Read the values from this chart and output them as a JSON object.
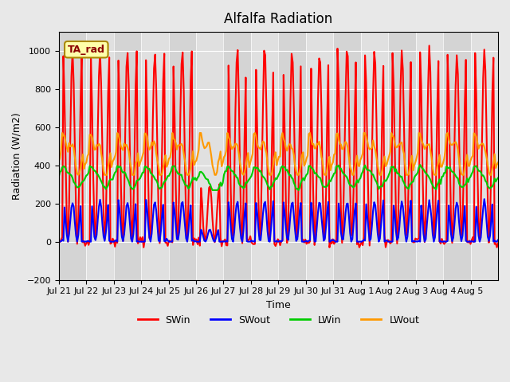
{
  "title": "Alfalfa Radiation",
  "xlabel": "Time",
  "ylabel": "Radiation (W/m2)",
  "ylim": [
    -200,
    1100
  ],
  "yticks": [
    -200,
    0,
    200,
    400,
    600,
    800,
    1000
  ],
  "bg_color": "#e8e8e8",
  "plot_bg_color": "#e0e0e0",
  "n_days": 16,
  "xtick_labels": [
    "Jul 21",
    "Jul 22",
    "Jul 23",
    "Jul 24",
    "Jul 25",
    "Jul 26",
    "Jul 27",
    "Jul 28",
    "Jul 29",
    "Jul 30",
    "Jul 31",
    "Aug 1",
    "Aug 2",
    "Aug 3",
    "Aug 4",
    "Aug 5"
  ],
  "xtick_positions": [
    0,
    1,
    2,
    3,
    4,
    5,
    6,
    7,
    8,
    9,
    10,
    11,
    12,
    13,
    14,
    15
  ],
  "colors": {
    "SWin": "#ff0000",
    "SWout": "#0000ff",
    "LWin": "#00cc00",
    "LWout": "#ff9900"
  },
  "legend_label": "TA_rad",
  "linewidth": 1.5
}
